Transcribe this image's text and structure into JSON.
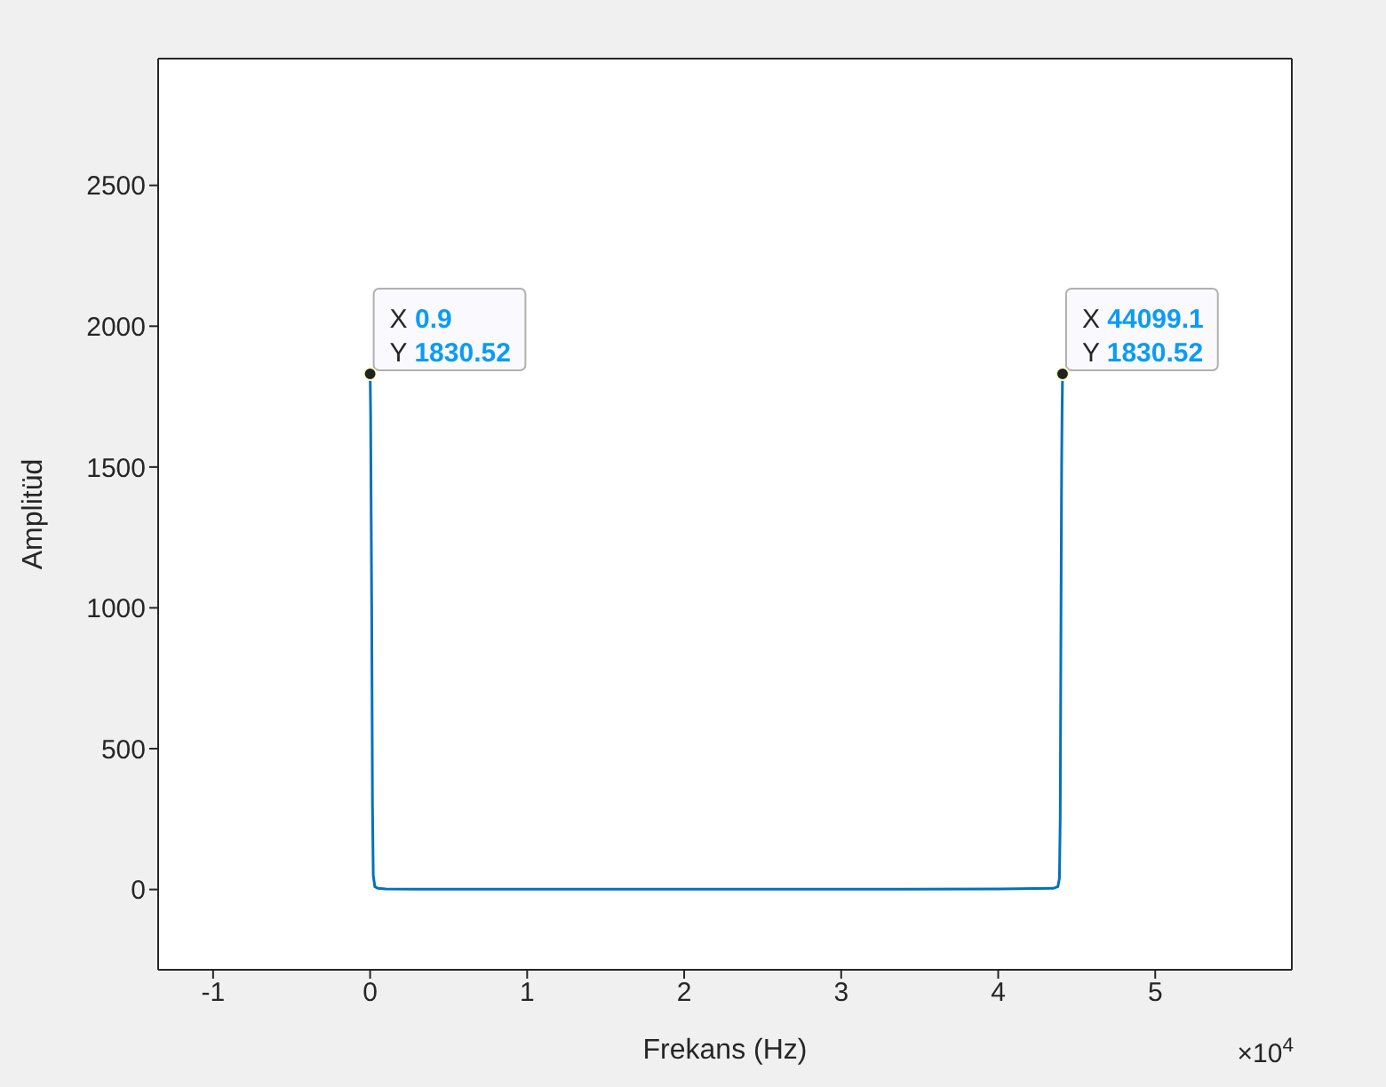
{
  "chart_data": {
    "type": "line",
    "xlabel": "Frekans (Hz)",
    "ylabel": "Amplitüd",
    "x": [
      9e-05,
      0.003,
      0.006,
      0.01,
      0.015,
      0.02,
      0.03,
      0.05,
      0.1,
      0.3,
      1,
      2,
      3,
      4,
      4.35,
      4.38,
      4.39,
      4.395,
      4.4,
      4.404,
      4.407,
      4.40991
    ],
    "series": [
      {
        "color": "#0072bd",
        "values": [
          1830.52,
          1700,
          1400,
          1000,
          300,
          50,
          10,
          4,
          2,
          1,
          1,
          1,
          1,
          2,
          4,
          10,
          40,
          250,
          1000,
          1500,
          1700,
          1830.52
        ]
      }
    ],
    "xlim": [
      -1.35,
      5.87
    ],
    "ylim": [
      -285,
      2950
    ],
    "xticks": [
      -1,
      0,
      1,
      2,
      3,
      4,
      5
    ],
    "yticks": [
      0,
      500,
      1000,
      1500,
      2000,
      2500
    ],
    "grid": false,
    "legend": false,
    "marker": "none",
    "line_style": "solid",
    "annotations": [
      {
        "text": "X 0.9\nY 1830.52",
        "x": 9e-05,
        "y": 1830.52
      },
      {
        "text": "X 44099.1\nY 1830.52",
        "x": 4.40991,
        "y": 1830.52
      },
      "×10$^{4}$"
    ]
  }
}
